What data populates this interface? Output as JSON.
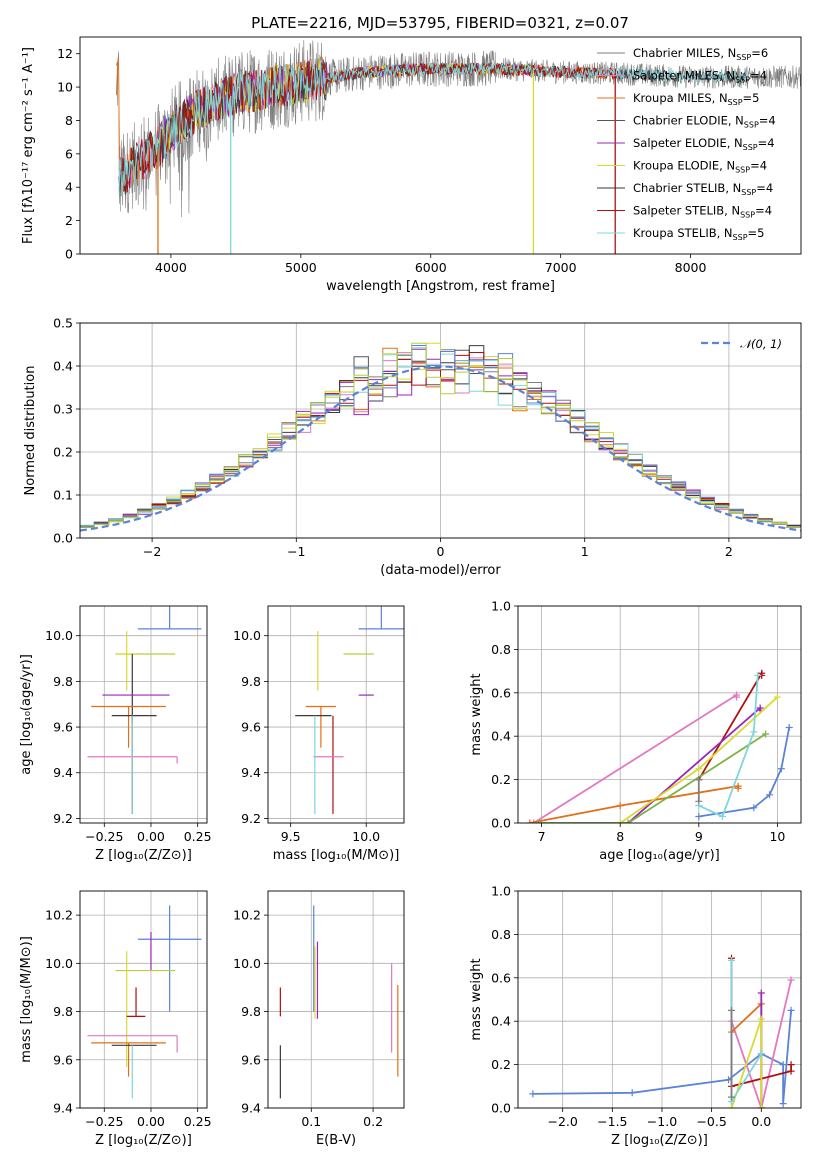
{
  "colors": {
    "Chabrier MILES": "#7f7f7f",
    "Salpeter MILES": "#e377c2",
    "Kroupa MILES": "#e0701a",
    "Chabrier ELODIE": "#555555",
    "Salpeter ELODIE": "#9a27b8",
    "Kroupa ELODIE": "#d9d932",
    "Chabrier STELIB": "#3a3a3a",
    "Salpeter STELIB": "#b01010",
    "Kroupa STELIB": "#7fd6dd",
    "extra_blue": "#5b83d6",
    "extra_yellowgreen": "#b5d13a",
    "extra_green": "#7cb342"
  },
  "chart_data": [
    {
      "id": "spectrum",
      "type": "line",
      "title": "PLATE=2216, MJD=53795, FIBERID=0321, z=0.07",
      "xlabel": "wavelength [Angstrom, rest frame]",
      "ylabel": "Flux [fλ10⁻¹⁷ erg cm⁻² s⁻¹ A⁻¹]",
      "xlim": [
        3300,
        8850
      ],
      "ylim": [
        0,
        13
      ],
      "xticks": [
        4000,
        5000,
        6000,
        7000,
        8000
      ],
      "yticks": [
        0,
        2,
        4,
        6,
        8,
        10,
        12
      ],
      "grid": false,
      "legend": "right",
      "legend_entries": [
        {
          "label": "Chabrier MILES, N",
          "sub": "SSP",
          "suffix": "=6"
        },
        {
          "label": "Salpeter MILES, N",
          "sub": "SSP",
          "suffix": "=4"
        },
        {
          "label": "Kroupa MILES, N",
          "sub": "SSP",
          "suffix": "=5"
        },
        {
          "label": "Chabrier ELODIE, N",
          "sub": "SSP",
          "suffix": "=4"
        },
        {
          "label": "Salpeter ELODIE, N",
          "sub": "SSP",
          "suffix": "=4"
        },
        {
          "label": "Kroupa ELODIE, N",
          "sub": "SSP",
          "suffix": "=4"
        },
        {
          "label": "Chabrier STELIB, N",
          "sub": "SSP",
          "suffix": "=4"
        },
        {
          "label": "Salpeter STELIB, N",
          "sub": "SSP",
          "suffix": "=4"
        },
        {
          "label": "Kroupa STELIB, N",
          "sub": "SSP",
          "suffix": "=5"
        }
      ],
      "continuum": [
        [
          3600,
          4.5
        ],
        [
          3700,
          5.2
        ],
        [
          3900,
          6.4
        ],
        [
          4000,
          7.4
        ],
        [
          4200,
          8.6
        ],
        [
          4500,
          9.6
        ],
        [
          5000,
          10.3
        ],
        [
          5500,
          10.9
        ],
        [
          6000,
          11.1
        ],
        [
          6500,
          11.1
        ],
        [
          7000,
          10.9
        ],
        [
          7500,
          10.8
        ],
        [
          8000,
          10.6
        ],
        [
          8500,
          10.6
        ]
      ],
      "data_range": [
        3580,
        8850
      ],
      "model_dropouts": [
        {
          "series": "Kroupa MILES",
          "x": 3900
        },
        {
          "series": "Kroupa STELIB",
          "x": 4460
        },
        {
          "series": "Kroupa ELODIE",
          "x": 6790
        },
        {
          "series": "Salpeter STELIB",
          "x": 7420
        }
      ]
    },
    {
      "id": "residuals",
      "type": "histogram",
      "xlabel": "(data-model)/error",
      "ylabel": "Normed distribution",
      "xlim": [
        -2.5,
        2.5
      ],
      "ylim": [
        0,
        0.5
      ],
      "xticks": [
        -2,
        -1,
        0,
        1,
        2
      ],
      "yticks": [
        0.0,
        0.1,
        0.2,
        0.3,
        0.4,
        0.5
      ],
      "grid": true,
      "legend": "top-right",
      "legend_label": "𝒩(0, 1)",
      "normal": {
        "mean": 0,
        "sigma": 1
      },
      "bins": [
        -2.5,
        2.5,
        50
      ]
    },
    {
      "id": "age-vs-Z",
      "type": "errorbar",
      "xlabel": "Z [log₁₀(Z/Z⊙)]",
      "ylabel": "age  [log₁₀(age/yr)]",
      "xlim": [
        -0.38,
        0.3
      ],
      "ylim": [
        9.18,
        10.13
      ],
      "xticks": [
        -0.25,
        0.0,
        0.25
      ],
      "yticks": [
        9.2,
        9.4,
        9.6,
        9.8,
        10.0
      ],
      "grid": true,
      "points": [
        {
          "series": "extra_blue",
          "x": 0.1,
          "xerr": 0.17,
          "y": 10.03,
          "yerr": [
            0.0,
            0.1
          ]
        },
        {
          "series": "extra_yellowgreen",
          "x": -0.03,
          "xerr": 0.16,
          "y": 9.92,
          "yerr": [
            0.0,
            0.0
          ]
        },
        {
          "series": "Kroupa ELODIE",
          "x": -0.13,
          "xerr": 0.05,
          "y": 9.92,
          "yerr": [
            0.16,
            0.1
          ]
        },
        {
          "series": "Chabrier STELIB",
          "x": -0.1,
          "xerr": 0.0,
          "y": 9.92,
          "yerr": [
            0.3,
            0.0
          ]
        },
        {
          "series": "Salpeter ELODIE",
          "x": -0.08,
          "xerr": 0.18,
          "y": 9.74,
          "yerr": [
            0.0,
            0.0
          ]
        },
        {
          "series": "Kroupa MILES",
          "x": -0.12,
          "xerr": 0.2,
          "y": 9.69,
          "yerr": [
            0.18,
            0.0
          ]
        },
        {
          "series": "Chabrier STELIB",
          "x": -0.09,
          "xerr": 0.12,
          "y": 9.65,
          "yerr": [
            0.0,
            0.0
          ]
        },
        {
          "series": "Salpeter STELIB",
          "x": -0.1,
          "xerr": 0.0,
          "y": 9.65,
          "yerr": [
            0.43,
            0.0
          ]
        },
        {
          "series": "Salpeter MILES",
          "x": -0.1,
          "xerr": 0.24,
          "y": 9.47,
          "yerr": [
            0.0,
            0.0
          ]
        },
        {
          "series": "Salpeter MILES",
          "x": 0.14,
          "xerr": 0.0,
          "y": 9.47,
          "yerr": [
            0.03,
            0.0
          ]
        },
        {
          "series": "Kroupa STELIB",
          "x": -0.1,
          "xerr": 0.0,
          "y": 9.65,
          "yerr": [
            0.43,
            0.0
          ]
        }
      ]
    },
    {
      "id": "age-vs-mass",
      "type": "errorbar",
      "xlabel": "mass [log₁₀(M/M⊙)]",
      "ylabel": "",
      "xlim": [
        9.35,
        10.25
      ],
      "ylim": [
        9.18,
        10.13
      ],
      "xticks": [
        9.5,
        10.0
      ],
      "yticks": [
        9.2,
        9.4,
        9.6,
        9.8,
        10.0
      ],
      "grid": true,
      "points": [
        {
          "series": "extra_blue",
          "x": 10.1,
          "xerr": 0.15,
          "y": 10.03,
          "yerr": [
            0.0,
            0.1
          ]
        },
        {
          "series": "extra_yellowgreen",
          "x": 9.95,
          "xerr": 0.1,
          "y": 9.92,
          "yerr": [
            0.0,
            0.0
          ]
        },
        {
          "series": "Kroupa ELODIE",
          "x": 9.68,
          "xerr": 0.0,
          "y": 9.92,
          "yerr": [
            0.16,
            0.1
          ]
        },
        {
          "series": "Salpeter ELODIE",
          "x": 10.0,
          "xerr": 0.05,
          "y": 9.74,
          "yerr": [
            0.0,
            0.0
          ]
        },
        {
          "series": "Kroupa MILES",
          "x": 9.7,
          "xerr": 0.1,
          "y": 9.69,
          "yerr": [
            0.18,
            0.0
          ]
        },
        {
          "series": "Chabrier STELIB",
          "x": 9.65,
          "xerr": 0.12,
          "y": 9.65,
          "yerr": [
            0.0,
            0.0
          ]
        },
        {
          "series": "Salpeter STELIB",
          "x": 9.78,
          "xerr": 0.0,
          "y": 9.65,
          "yerr": [
            0.43,
            0.0
          ]
        },
        {
          "series": "Salpeter MILES",
          "x": 9.75,
          "xerr": 0.1,
          "y": 9.47,
          "yerr": [
            0.0,
            0.0
          ]
        },
        {
          "series": "Kroupa STELIB",
          "x": 9.66,
          "xerr": 0.0,
          "y": 9.65,
          "yerr": [
            0.43,
            0.0
          ]
        }
      ]
    },
    {
      "id": "massweight-vs-age",
      "type": "line",
      "xlabel": "age  [log₁₀(age/yr)]",
      "ylabel": "mass weight",
      "xlim": [
        6.7,
        10.3
      ],
      "ylim": [
        0,
        1.0
      ],
      "xticks": [
        7,
        8,
        9,
        10
      ],
      "yticks": [
        0.0,
        0.2,
        0.4,
        0.6,
        0.8,
        1.0
      ],
      "grid": true,
      "series": [
        {
          "name": "extra_blue",
          "x": [
            9.0,
            9.7,
            9.9,
            10.05,
            10.15
          ],
          "y": [
            0.03,
            0.07,
            0.13,
            0.25,
            0.44
          ]
        },
        {
          "name": "Salpeter MILES",
          "x": [
            6.9,
            9.48,
            9.48
          ],
          "y": [
            0.0,
            0.59,
            0.58
          ]
        },
        {
          "name": "Kroupa MILES",
          "x": [
            6.85,
            8.0,
            9.5,
            9.5
          ],
          "y": [
            0.0,
            0.08,
            0.17,
            0.16
          ]
        },
        {
          "name": "Salpeter STELIB",
          "x": [
            9.0,
            9.8,
            9.8
          ],
          "y": [
            0.2,
            0.69,
            0.68
          ]
        },
        {
          "name": "Salpeter ELODIE",
          "x": [
            8.1,
            9.78,
            9.78
          ],
          "y": [
            0.0,
            0.53,
            0.52
          ]
        },
        {
          "name": "Kroupa ELODIE",
          "x": [
            8.0,
            9.0,
            10.0
          ],
          "y": [
            0.0,
            0.25,
            0.58
          ]
        },
        {
          "name": "extra_green",
          "x": [
            6.95,
            8.1,
            9.85
          ],
          "y": [
            0.0,
            0.0,
            0.41
          ]
        },
        {
          "name": "Kroupa STELIB",
          "x": [
            9.0,
            9.3,
            9.7,
            9.75
          ],
          "y": [
            0.08,
            0.03,
            0.42,
            0.68
          ]
        },
        {
          "name": "Chabrier MILES",
          "x": [
            9.0,
            9.0
          ],
          "y": [
            0.1,
            0.2
          ]
        }
      ]
    },
    {
      "id": "mass-vs-Z",
      "type": "errorbar",
      "xlabel": "Z [log₁₀(Z/Z⊙)]",
      "ylabel": "mass [log₁₀(M/M⊙)]",
      "xlim": [
        -0.38,
        0.3
      ],
      "ylim": [
        9.4,
        10.3
      ],
      "xticks": [
        -0.25,
        0.0,
        0.25
      ],
      "yticks": [
        9.4,
        9.6,
        9.8,
        10.0,
        10.2
      ],
      "grid": true,
      "points": [
        {
          "series": "extra_blue",
          "x": 0.1,
          "xerr": 0.17,
          "y": 10.1,
          "yerr": [
            0.3,
            0.14
          ]
        },
        {
          "series": "Salpeter ELODIE",
          "x": 0.0,
          "xerr": 0.0,
          "y": 9.97,
          "yerr": [
            0.0,
            0.16
          ]
        },
        {
          "series": "extra_yellowgreen",
          "x": -0.03,
          "xerr": 0.16,
          "y": 9.97,
          "yerr": [
            0.0,
            0.0
          ]
        },
        {
          "series": "Kroupa ELODIE",
          "x": -0.13,
          "xerr": 0.0,
          "y": 9.97,
          "yerr": [
            0.4,
            0.08
          ]
        },
        {
          "series": "Salpeter STELIB",
          "x": -0.08,
          "xerr": 0.05,
          "y": 9.78,
          "yerr": [
            0.0,
            0.12
          ]
        },
        {
          "series": "Salpeter MILES",
          "x": -0.1,
          "xerr": 0.24,
          "y": 9.7,
          "yerr": [
            0.0,
            0.0
          ]
        },
        {
          "series": "Salpeter MILES",
          "x": 0.14,
          "xerr": 0.0,
          "y": 9.7,
          "yerr": [
            0.07,
            0.0
          ]
        },
        {
          "series": "Kroupa MILES",
          "x": -0.12,
          "xerr": 0.2,
          "y": 9.67,
          "yerr": [
            0.14,
            0.0
          ]
        },
        {
          "series": "Chabrier STELIB",
          "x": -0.09,
          "xerr": 0.12,
          "y": 9.66,
          "yerr": [
            0.0,
            0.0
          ]
        },
        {
          "series": "Kroupa STELIB",
          "x": -0.1,
          "xerr": 0.0,
          "y": 9.66,
          "yerr": [
            0.22,
            0.0
          ]
        }
      ]
    },
    {
      "id": "mass-vs-ebv",
      "type": "errorbar",
      "xlabel": "E(B-V)",
      "ylabel": "",
      "xlim": [
        0.03,
        0.25
      ],
      "ylim": [
        9.4,
        10.3
      ],
      "xticks": [
        0.1,
        0.2
      ],
      "yticks": [
        9.4,
        9.6,
        9.8,
        10.0,
        10.2
      ],
      "grid": true,
      "points": [
        {
          "series": "extra_blue",
          "x": 0.104,
          "xerr": 0.0,
          "y": 10.1,
          "yerr": [
            0.3,
            0.14
          ]
        },
        {
          "series": "Salpeter ELODIE",
          "x": 0.11,
          "xerr": 0.0,
          "y": 9.97,
          "yerr": [
            0.2,
            0.12
          ]
        },
        {
          "series": "Kroupa ELODIE",
          "x": 0.106,
          "xerr": 0.0,
          "y": 9.97,
          "yerr": [
            0.2,
            0.1
          ]
        },
        {
          "series": "Salpeter STELIB",
          "x": 0.05,
          "xerr": 0.0,
          "y": 9.78,
          "yerr": [
            0.0,
            0.12
          ]
        },
        {
          "series": "Chabrier STELIB",
          "x": 0.05,
          "xerr": 0.0,
          "y": 9.66,
          "yerr": [
            0.22,
            0.0
          ]
        },
        {
          "series": "Salpeter MILES",
          "x": 0.23,
          "xerr": 0.0,
          "y": 9.8,
          "yerr": [
            0.17,
            0.2
          ]
        },
        {
          "series": "Kroupa MILES",
          "x": 0.24,
          "xerr": 0.0,
          "y": 9.73,
          "yerr": [
            0.2,
            0.18
          ]
        }
      ]
    },
    {
      "id": "massweight-vs-Z",
      "type": "line",
      "xlabel": "Z [log₁₀(Z/Z⊙)]",
      "ylabel": "mass weight",
      "xlim": [
        -2.45,
        0.4
      ],
      "ylim": [
        0,
        1.0
      ],
      "xticks": [
        -2.0,
        -1.5,
        -1.0,
        -0.5,
        0.0
      ],
      "yticks": [
        0.0,
        0.2,
        0.4,
        0.6,
        0.8,
        1.0
      ],
      "grid": true,
      "series": [
        {
          "name": "extra_blue",
          "x": [
            -2.3,
            -1.3,
            -0.33,
            0.0,
            0.22,
            0.22,
            0.3
          ],
          "y": [
            0.065,
            0.07,
            0.13,
            0.25,
            0.2,
            0.02,
            0.45
          ]
        },
        {
          "name": "Salpeter MILES",
          "x": [
            -0.3,
            0.0,
            0.3
          ],
          "y": [
            0.4,
            0.0,
            0.59
          ]
        },
        {
          "name": "Kroupa MILES",
          "x": [
            -0.3,
            0.0,
            0.0
          ],
          "y": [
            0.35,
            0.48,
            0.0
          ]
        },
        {
          "name": "Salpeter STELIB",
          "x": [
            -0.3,
            -0.3,
            0.3,
            0.3
          ],
          "y": [
            0.69,
            0.1,
            0.17,
            0.2
          ]
        },
        {
          "name": "Salpeter ELODIE",
          "x": [
            0.0,
            0.0
          ],
          "y": [
            0.53,
            0.0
          ]
        },
        {
          "name": "Kroupa ELODIE",
          "x": [
            -0.3,
            0.0,
            0.0
          ],
          "y": [
            0.0,
            0.41,
            0.0
          ]
        },
        {
          "name": "Kroupa STELIB",
          "x": [
            -0.3,
            -0.3,
            0.0
          ],
          "y": [
            0.68,
            0.03,
            0.25
          ]
        },
        {
          "name": "Chabrier MILES",
          "x": [
            -0.3,
            -0.3
          ],
          "y": [
            0.05,
            0.45
          ]
        }
      ]
    }
  ]
}
